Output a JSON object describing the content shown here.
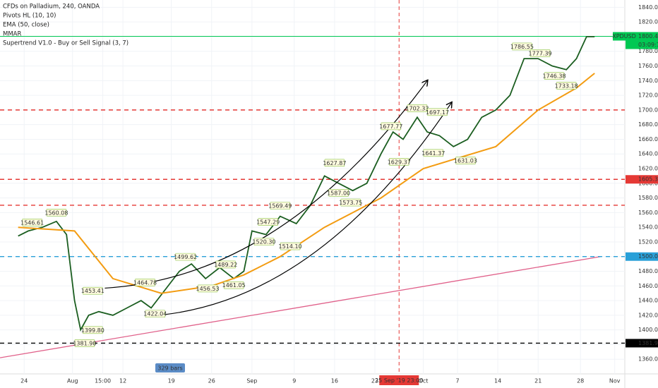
{
  "chart_data": {
    "type": "line",
    "title": "CFDs on Palladium, 240, OANDA",
    "indicators": [
      "Pivots HL (10, 10)",
      "EMA (50, close)",
      "MMAR",
      "Supertrend V1.0 - Buy or Sell Signal (3, 7)"
    ],
    "xlim": [
      0,
      310
    ],
    "ylim": [
      1340,
      1850
    ],
    "xticks": [
      {
        "value": 12,
        "label": "24"
      },
      {
        "value": 36,
        "label": "Aug"
      },
      {
        "value": 51,
        "label": "15:00"
      },
      {
        "value": 61,
        "label": "12"
      },
      {
        "value": 85,
        "label": "19"
      },
      {
        "value": 105,
        "label": "26"
      },
      {
        "value": 125,
        "label": "Sep"
      },
      {
        "value": 146,
        "label": "9"
      },
      {
        "value": 166,
        "label": "16"
      },
      {
        "value": 186,
        "label": "23"
      },
      {
        "value": 210,
        "label": "Oct"
      },
      {
        "value": 227,
        "label": "7"
      },
      {
        "value": 247,
        "label": "14"
      },
      {
        "value": 267,
        "label": "21"
      },
      {
        "value": 288,
        "label": "28"
      },
      {
        "value": 305,
        "label": "Nov"
      }
    ],
    "yticks": [
      {
        "value": 1360,
        "label": "1360.00"
      },
      {
        "value": 1380,
        "label": "1380.00"
      },
      {
        "value": 1400,
        "label": "1400.00"
      },
      {
        "value": 1420,
        "label": "1420.00"
      },
      {
        "value": 1440,
        "label": "1440.00"
      },
      {
        "value": 1460,
        "label": "1460.00"
      },
      {
        "value": 1480,
        "label": "1480.00"
      },
      {
        "value": 1500,
        "label": "1500.00"
      },
      {
        "value": 1520,
        "label": "1520.00"
      },
      {
        "value": 1540,
        "label": "1540.00"
      },
      {
        "value": 1560,
        "label": "1560.00"
      },
      {
        "value": 1580,
        "label": "1580.00"
      },
      {
        "value": 1600,
        "label": "1600.00"
      },
      {
        "value": 1620,
        "label": "1620.00"
      },
      {
        "value": 1640,
        "label": "1640.00"
      },
      {
        "value": 1660,
        "label": "1660.00"
      },
      {
        "value": 1680,
        "label": "1680.00"
      },
      {
        "value": 1700,
        "label": "1700.00"
      },
      {
        "value": 1720,
        "label": "1720.00"
      },
      {
        "value": 1740,
        "label": "1740.00"
      },
      {
        "value": 1760,
        "label": "1760.00"
      },
      {
        "value": 1780,
        "label": "1780.00"
      },
      {
        "value": 1800,
        "label": "1800.00"
      },
      {
        "value": 1820,
        "label": "1820.00"
      },
      {
        "value": 1840,
        "label": "1840.00"
      }
    ],
    "series": [
      {
        "name": "XPDUSD",
        "color": "#1b5e20",
        "x": [
          9,
          14,
          21,
          28,
          33,
          37,
          40,
          44,
          49,
          56,
          63,
          70,
          75,
          82,
          89,
          95,
          102,
          109,
          116,
          121,
          125,
          132,
          139,
          147,
          154,
          161,
          168,
          175,
          182,
          189,
          195,
          200,
          207,
          212,
          218,
          225,
          232,
          239,
          246,
          253,
          260,
          267,
          274,
          281,
          286,
          291,
          295
        ],
        "values": [
          1528,
          1535,
          1540,
          1548,
          1530,
          1440,
          1400,
          1420,
          1425,
          1420,
          1430,
          1440,
          1430,
          1455,
          1480,
          1490,
          1470,
          1485,
          1470,
          1480,
          1535,
          1530,
          1555,
          1545,
          1570,
          1610,
          1600,
          1590,
          1600,
          1640,
          1670,
          1660,
          1690,
          1670,
          1665,
          1650,
          1660,
          1690,
          1700,
          1720,
          1770,
          1770,
          1760,
          1755,
          1770,
          1800,
          1800
        ]
      },
      {
        "name": "EMA (50, close)",
        "color": "#f39c12",
        "x": [
          9,
          37,
          56,
          80,
          105,
          121,
          139,
          161,
          189,
          210,
          246,
          267,
          286,
          295
        ],
        "values": [
          1540,
          1535,
          1470,
          1450,
          1460,
          1475,
          1500,
          1540,
          1580,
          1620,
          1650,
          1700,
          1730,
          1750
        ]
      }
    ],
    "levels": [
      {
        "value": 1800.46,
        "label": "1800.46",
        "color": "#00c853",
        "dashed": false,
        "tag": "XPDUSD",
        "countdown": "03:09:19"
      },
      {
        "value": 1700,
        "color": "#e53935",
        "dashed": true
      },
      {
        "value": 1605.35,
        "label": "1605.35",
        "color": "#e53935",
        "dashed": true
      },
      {
        "value": 1570,
        "color": "#e53935",
        "dashed": true
      },
      {
        "value": 1500,
        "label": "1500.00",
        "color": "#29a0d8",
        "dashed": true
      },
      {
        "value": 1381.9,
        "label": "1381.90",
        "color": "#000000",
        "dashed": true
      }
    ],
    "trendline": {
      "x": [
        0,
        298
      ],
      "y": [
        1362,
        1500
      ],
      "color": "#e0608a"
    },
    "arrows": [
      {
        "x": [
          52,
          212
        ],
        "y": [
          1457,
          1740
        ]
      },
      {
        "x": [
          74,
          224
        ],
        "y": [
          1419,
          1710
        ]
      }
    ],
    "crosshair": {
      "x": 198,
      "label": "25 Sep '19  23:00"
    },
    "range_label": "329 bars",
    "pivots": [
      {
        "x": 16,
        "value": 1546.61,
        "label": "1546.61"
      },
      {
        "x": 28,
        "value": 1560.08,
        "label": "1560.08"
      },
      {
        "x": 46,
        "value": 1453.41,
        "label": "1453.41"
      },
      {
        "x": 72,
        "value": 1464.78,
        "label": "1464.78"
      },
      {
        "x": 92,
        "value": 1499.62,
        "label": "1499.62"
      },
      {
        "x": 112,
        "value": 1489.22,
        "label": "1489.22"
      },
      {
        "x": 103,
        "value": 1456.53,
        "label": "1456.53"
      },
      {
        "x": 116,
        "value": 1461.05,
        "label": "1461.05"
      },
      {
        "x": 77,
        "value": 1422.04,
        "label": "1422.04"
      },
      {
        "x": 46,
        "value": 1399.8,
        "label": "1399.80"
      },
      {
        "x": 42,
        "value": 1381.9,
        "label": "1381.90"
      },
      {
        "x": 133,
        "value": 1547.29,
        "label": "1547.29"
      },
      {
        "x": 139,
        "value": 1569.49,
        "label": "1569.49"
      },
      {
        "x": 131,
        "value": 1520.3,
        "label": "1520.30"
      },
      {
        "x": 144,
        "value": 1514.1,
        "label": "1514.10"
      },
      {
        "x": 166,
        "value": 1627.87,
        "label": "1627.87"
      },
      {
        "x": 168,
        "value": 1587.0,
        "label": "1587.00"
      },
      {
        "x": 174,
        "value": 1573.75,
        "label": "1573.75"
      },
      {
        "x": 194,
        "value": 1677.77,
        "label": "1677.77"
      },
      {
        "x": 198,
        "value": 1629.37,
        "label": "1629.37"
      },
      {
        "x": 207,
        "value": 1702.33,
        "label": "1702.33"
      },
      {
        "x": 217,
        "value": 1697.17,
        "label": "1697.17"
      },
      {
        "x": 215,
        "value": 1641.37,
        "label": "1641.37"
      },
      {
        "x": 231,
        "value": 1631.03,
        "label": "1631.03"
      },
      {
        "x": 259,
        "value": 1786.55,
        "label": "1786.55"
      },
      {
        "x": 268,
        "value": 1777.39,
        "label": "1777.39"
      },
      {
        "x": 275,
        "value": 1746.38,
        "label": "1746.38"
      },
      {
        "x": 281,
        "value": 1733.18,
        "label": "1733.18"
      }
    ]
  }
}
